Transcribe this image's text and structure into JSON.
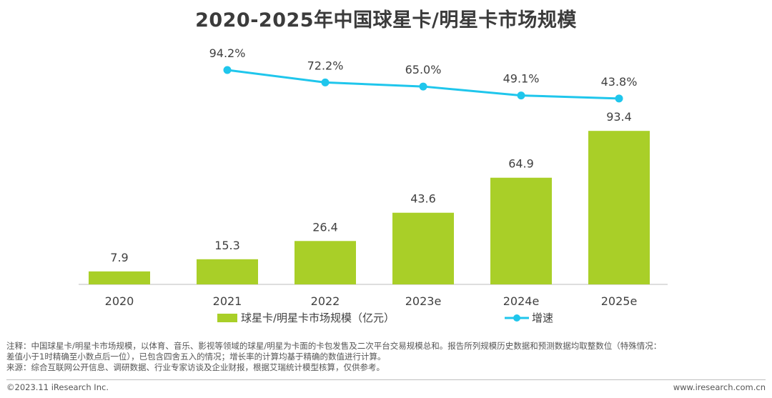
{
  "chart_data": {
    "type": "bar",
    "title": "2020-2025年中国球星卡/明星卡市场规模",
    "categories": [
      "2020",
      "2021",
      "2022",
      "2023e",
      "2024e",
      "2025e"
    ],
    "series": [
      {
        "name": "球星卡/明星卡市场规模（亿元）",
        "type": "bar",
        "values": [
          7.9,
          15.3,
          26.4,
          43.6,
          64.9,
          93.4
        ],
        "labels": [
          "7.9",
          "15.3",
          "26.4",
          "43.6",
          "64.9",
          "93.4"
        ],
        "color": "#a9cf28"
      },
      {
        "name": "增速",
        "type": "line",
        "values": [
          null,
          94.2,
          72.2,
          65.0,
          49.1,
          43.8
        ],
        "labels": [
          "",
          "94.2%",
          "72.2%",
          "65.0%",
          "49.1%",
          "43.8%"
        ],
        "color": "#1fc6ec"
      }
    ],
    "xlabel": "",
    "ylabel": "",
    "legend": "bottom"
  },
  "notes": {
    "line1": "注释：中国球星卡/明星卡市场规模，以体育、音乐、影视等领域的球星/明星为卡面的卡包发售及二次平台交易规模总和。报告所列规模历史数据和预测数据均取整数位（特殊情况：",
    "line2": "差值小于1时精确至小数点后一位），已包含四舍五入的情况；增长率的计算均基于精确的数值进行计算。",
    "line3": "来源：综合互联网公开信息、调研数据、行业专家访谈及企业财报，根据艾瑞统计模型核算，仅供参考。"
  },
  "footer": {
    "copyright": "©2023.11 iResearch Inc.",
    "site": "www.iresearch.com.cn"
  }
}
